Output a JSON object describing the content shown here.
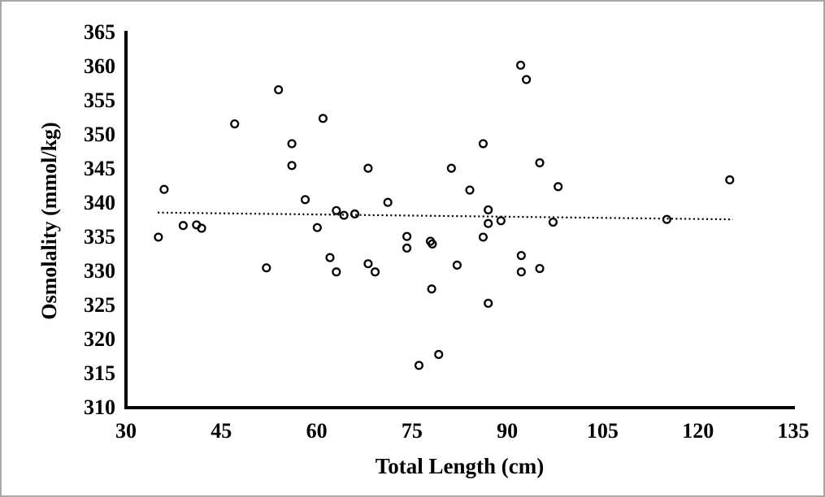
{
  "chart_data": {
    "type": "scatter",
    "title": "",
    "xlabel": "Total Length (cm)",
    "ylabel": "Osmolality (mmol/kg)",
    "xlim": [
      30,
      135
    ],
    "ylim": [
      310,
      365
    ],
    "x_ticks": [
      30,
      45,
      60,
      75,
      90,
      105,
      120,
      135
    ],
    "y_ticks": [
      365,
      360,
      355,
      350,
      345,
      340,
      335,
      330,
      325,
      320,
      315,
      310
    ],
    "grid": false,
    "legend_position": "none",
    "marker": {
      "shape": "open-circle",
      "stroke_color": "#000000",
      "fill": "none"
    },
    "points": [
      [
        35.1,
        335.0
      ],
      [
        36.0,
        342.0
      ],
      [
        39.0,
        336.7
      ],
      [
        41.1,
        336.8
      ],
      [
        41.9,
        336.3
      ],
      [
        47.1,
        351.6
      ],
      [
        52.1,
        330.5
      ],
      [
        54.0,
        356.6
      ],
      [
        56.1,
        348.7
      ],
      [
        56.1,
        345.5
      ],
      [
        58.2,
        340.5
      ],
      [
        60.1,
        336.4
      ],
      [
        61.0,
        352.4
      ],
      [
        62.1,
        332.0
      ],
      [
        63.1,
        338.9
      ],
      [
        63.1,
        329.9
      ],
      [
        64.3,
        338.2
      ],
      [
        66.0,
        338.4
      ],
      [
        68.1,
        345.1
      ],
      [
        68.1,
        331.1
      ],
      [
        69.2,
        329.9
      ],
      [
        71.2,
        340.1
      ],
      [
        74.2,
        335.1
      ],
      [
        74.2,
        333.4
      ],
      [
        76.1,
        316.2
      ],
      [
        77.9,
        334.4
      ],
      [
        78.2,
        334.0
      ],
      [
        78.1,
        327.4
      ],
      [
        79.2,
        317.8
      ],
      [
        81.2,
        345.1
      ],
      [
        82.1,
        330.9
      ],
      [
        84.1,
        341.9
      ],
      [
        86.2,
        348.7
      ],
      [
        86.2,
        335.0
      ],
      [
        87.0,
        339.0
      ],
      [
        87.0,
        337.0
      ],
      [
        87.0,
        325.3
      ],
      [
        89.0,
        337.4
      ],
      [
        92.1,
        360.2
      ],
      [
        92.2,
        332.3
      ],
      [
        92.2,
        329.9
      ],
      [
        93.0,
        358.1
      ],
      [
        95.1,
        345.9
      ],
      [
        95.1,
        330.4
      ],
      [
        97.2,
        337.2
      ],
      [
        98.0,
        342.4
      ],
      [
        115.1,
        337.6
      ],
      [
        125.0,
        343.4
      ]
    ],
    "trendline": {
      "style": "dotted",
      "color": "#000000",
      "x_start": 35.0,
      "y_start": 338.6,
      "x_end": 125.5,
      "y_end": 337.6
    }
  },
  "colors": {
    "background": "#ffffff",
    "axis": "#000000",
    "marker": "#000000",
    "border": "#a8a8a8"
  }
}
